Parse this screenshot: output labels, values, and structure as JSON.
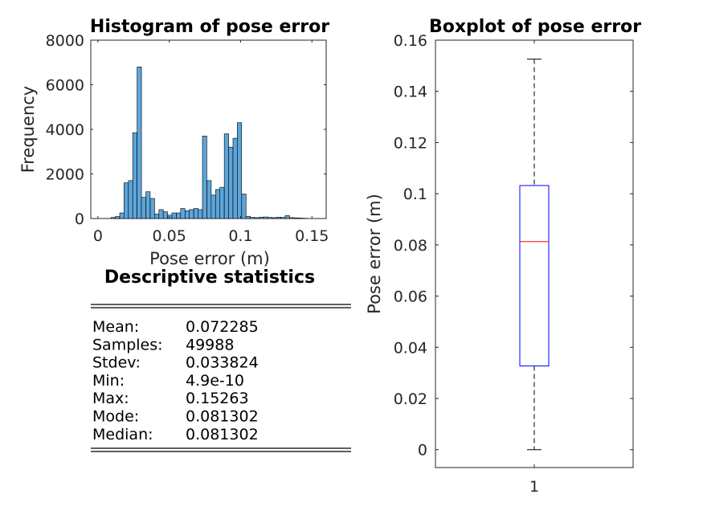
{
  "chart_data": [
    {
      "type": "bar",
      "title": "Histogram of pose error",
      "xlabel": "Pose error (m)",
      "ylabel": "Frequency",
      "xlim": [
        -0.005,
        0.16
      ],
      "ylim": [
        0,
        8000
      ],
      "xticks": [
        "0",
        "0.05",
        "0.1",
        "0.15"
      ],
      "yticks": [
        "0",
        "2000",
        "4000",
        "6000",
        "8000"
      ],
      "bar_color": "#5DA5D9",
      "bin_width": 0.0030526,
      "bin_centers": [
        0.0107,
        0.0137,
        0.0168,
        0.0198,
        0.0229,
        0.0259,
        0.029,
        0.032,
        0.0351,
        0.0382,
        0.0412,
        0.0443,
        0.0473,
        0.0504,
        0.0534,
        0.0565,
        0.0595,
        0.0626,
        0.0656,
        0.0687,
        0.0717,
        0.0748,
        0.0779,
        0.0809,
        0.084,
        0.087,
        0.0901,
        0.0931,
        0.0962,
        0.0992,
        0.1023,
        0.1053,
        0.1084,
        0.1114,
        0.1145,
        0.1175,
        0.1206,
        0.1237,
        0.1267,
        0.1298,
        0.1328,
        0.1359,
        0.1389,
        0.142,
        0.145
      ],
      "values": [
        50,
        90,
        250,
        1600,
        1700,
        3850,
        6800,
        950,
        1200,
        900,
        200,
        400,
        300,
        150,
        250,
        250,
        450,
        350,
        400,
        450,
        400,
        3700,
        1700,
        1050,
        1300,
        1400,
        3800,
        3200,
        3600,
        4300,
        1100,
        100,
        50,
        40,
        60,
        70,
        50,
        40,
        60,
        50,
        130,
        40,
        30,
        20,
        10
      ]
    },
    {
      "type": "box",
      "title": "Boxplot of pose error",
      "ylabel": "Pose error (m)",
      "categories": [
        "1"
      ],
      "ylim": [
        -0.007,
        0.16
      ],
      "yticks": [
        "0",
        "0.02",
        "0.04",
        "0.06",
        "0.08",
        "0.1",
        "0.12",
        "0.14",
        "0.16"
      ],
      "box": {
        "min": 0,
        "q1": 0.0327,
        "median": 0.0813,
        "q3": 0.1032,
        "max": 0.1526
      },
      "box_color": "#0000FF",
      "median_color": "#FF0000"
    }
  ],
  "stats": {
    "title": "Descriptive statistics",
    "rows": [
      {
        "label": "Mean:",
        "value": "0.072285"
      },
      {
        "label": "Samples:",
        "value": "49988"
      },
      {
        "label": "Stdev:",
        "value": "0.033824"
      },
      {
        "label": "Min:",
        "value": "4.9e-10"
      },
      {
        "label": "Max:",
        "value": "0.15263"
      },
      {
        "label": "Mode:",
        "value": "0.081302"
      },
      {
        "label": "Median:",
        "value": "0.081302"
      }
    ]
  }
}
